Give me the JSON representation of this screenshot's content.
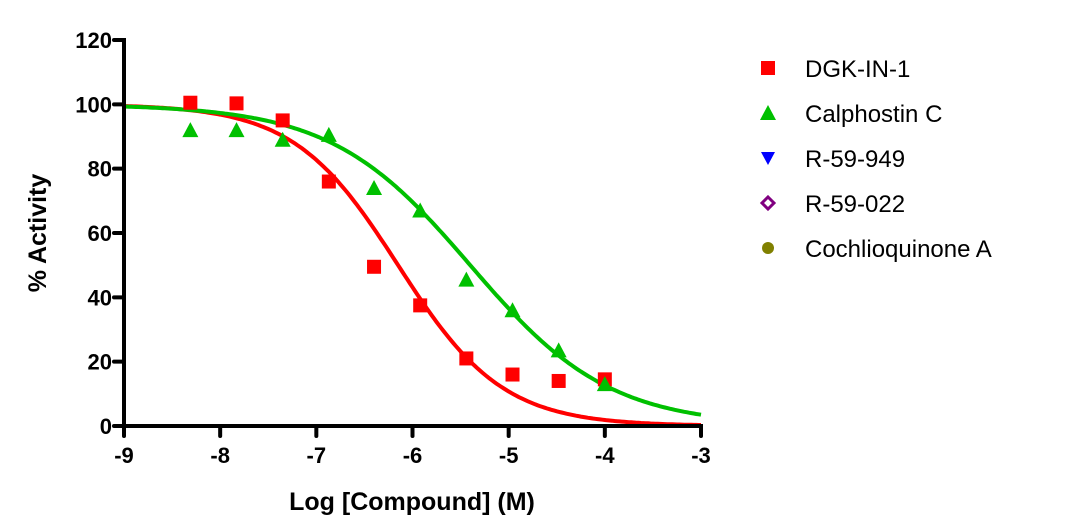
{
  "chart_data": {
    "type": "scatter",
    "title": "",
    "xlabel": "Log [Compound] (M)",
    "ylabel": "% Activity",
    "xlim": [
      -9,
      -3
    ],
    "ylim": [
      0,
      120
    ],
    "xticks": [
      "-9",
      "-8",
      "-7",
      "-6",
      "-5",
      "-4",
      "-3"
    ],
    "yticks": [
      "0",
      "20",
      "40",
      "60",
      "80",
      "100",
      "120"
    ],
    "grid": false,
    "legend_position": "right",
    "series": [
      {
        "name": "DGK-IN-1",
        "marker": "square",
        "color": "#ff0000",
        "x": [
          -8.31,
          -7.83,
          -7.35,
          -6.87,
          -6.4,
          -5.92,
          -5.44,
          -4.96,
          -4.48,
          -4.0
        ],
        "y": [
          100.5,
          100.3,
          95,
          76,
          49.5,
          37.5,
          21,
          16,
          14,
          14.5
        ],
        "fit": {
          "top": 100,
          "bottom": 0,
          "logIC50": -6.15,
          "hill": 0.8
        }
      },
      {
        "name": "Calphostin C",
        "marker": "triangle-up",
        "color": "#00c000",
        "x": [
          -8.31,
          -7.83,
          -7.35,
          -6.87,
          -6.4,
          -5.92,
          -5.44,
          -4.96,
          -4.48,
          -4.0
        ],
        "y": [
          92,
          92,
          89,
          90.5,
          74,
          67,
          45.5,
          36,
          23.5,
          13
        ],
        "fit": {
          "top": 100,
          "bottom": 0,
          "logIC50": -5.4,
          "hill": 0.6
        }
      },
      {
        "name": "R-59-949",
        "marker": "triangle-down",
        "color": "#0000ff",
        "x": [],
        "y": []
      },
      {
        "name": "R-59-022",
        "marker": "diamond-open",
        "color": "#800080",
        "x": [],
        "y": []
      },
      {
        "name": "Cochlioquinone A",
        "marker": "circle",
        "color": "#808000",
        "x": [],
        "y": []
      }
    ]
  }
}
